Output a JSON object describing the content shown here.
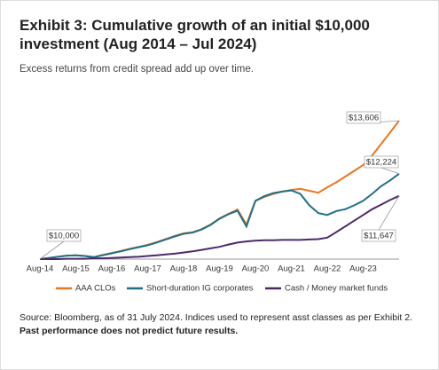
{
  "chart_data": {
    "type": "line",
    "title": "Exhibit 3: Cumulative growth of an initial $10,000 investment (Aug 2014 – Jul 2024)",
    "subtitle": "Excess returns from credit spread add up over time.",
    "categories": [
      "Aug-14",
      null,
      null,
      null,
      "Aug-15",
      null,
      null,
      null,
      "Aug-16",
      null,
      null,
      null,
      "Aug-17",
      null,
      null,
      null,
      "Aug-18",
      null,
      null,
      null,
      "Aug-19",
      null,
      null,
      null,
      "Aug-20",
      null,
      null,
      null,
      "Aug-21",
      null,
      null,
      null,
      "Aug-22",
      null,
      null,
      null,
      "Aug-23",
      null,
      null,
      null,
      null
    ],
    "ylim": [
      10000,
      14300
    ],
    "grid": false,
    "series": [
      {
        "name": "AAA CLOs",
        "color": "#e87722",
        "values": [
          10000,
          10030,
          10060,
          10090,
          10100,
          10080,
          10050,
          10110,
          10160,
          10210,
          10270,
          10320,
          10370,
          10440,
          10520,
          10600,
          10670,
          10700,
          10780,
          10900,
          11060,
          11180,
          11290,
          10900,
          11520,
          11620,
          11700,
          11760,
          11800,
          11830,
          11780,
          11730,
          11870,
          12000,
          12150,
          12300,
          12450,
          12700,
          13000,
          13300,
          13606
        ]
      },
      {
        "name": "Short-duration IG corporates",
        "color": "#1f6f8b",
        "values": [
          10000,
          10030,
          10060,
          10090,
          10100,
          10080,
          10050,
          10100,
          10150,
          10200,
          10260,
          10310,
          10360,
          10430,
          10510,
          10590,
          10660,
          10690,
          10770,
          10890,
          11050,
          11170,
          11260,
          10850,
          11520,
          11640,
          11720,
          11760,
          11790,
          11700,
          11400,
          11200,
          11150,
          11250,
          11300,
          11400,
          11520,
          11700,
          11900,
          12050,
          12224
        ]
      },
      {
        "name": "Cash / Money market funds",
        "color": "#4b2a6b",
        "values": [
          10000,
          10000,
          10000,
          10010,
          10010,
          10010,
          10020,
          10020,
          10030,
          10040,
          10050,
          10060,
          10080,
          10100,
          10120,
          10140,
          10170,
          10200,
          10240,
          10280,
          10320,
          10380,
          10430,
          10460,
          10480,
          10490,
          10490,
          10500,
          10500,
          10500,
          10510,
          10520,
          10560,
          10700,
          10850,
          11000,
          11150,
          11300,
          11420,
          11540,
          11647
        ]
      }
    ],
    "annotations": [
      {
        "label": "$10,000",
        "value": 10000
      },
      {
        "label": "$13,606",
        "value": 13606
      },
      {
        "label": "$12,224",
        "value": 12224
      },
      {
        "label": "$11,647",
        "value": 11647
      }
    ],
    "source": "Source: Bloomberg, as of 31 July 2024. Indices used to represent asst classes as per Exhibit 2.",
    "source_bold": "Past performance does not predict future results."
  }
}
